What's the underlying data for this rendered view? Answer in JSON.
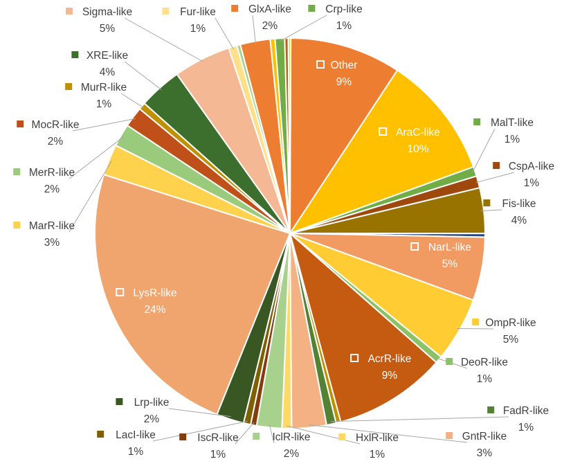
{
  "chart_data": {
    "type": "pie",
    "title": "",
    "slices": [
      {
        "label": "Other",
        "pct_label": "9%",
        "value": 9.3,
        "color": "#ED7D31",
        "label_inside": true
      },
      {
        "label": "AraC-like",
        "pct_label": "10%",
        "value": 10.3,
        "color": "#FFC000",
        "label_inside": true
      },
      {
        "label": "MalT-like",
        "pct_label": "1%",
        "value": 0.8,
        "color": "#70AD47",
        "label_inside": false
      },
      {
        "label": "CspA-like",
        "pct_label": "1%",
        "value": 1.0,
        "color": "#9E480E",
        "label_inside": false
      },
      {
        "label": "Fis-like",
        "pct_label": "4%",
        "value": 3.8,
        "color": "#997300",
        "label_inside": false
      },
      {
        "label": "",
        "pct_label": "",
        "value": 0.3,
        "color": "#264478",
        "label_inside": false
      },
      {
        "label": "NarL-like",
        "pct_label": "5%",
        "value": 5.3,
        "color": "#F19B63",
        "label_inside": true
      },
      {
        "label": "OmpR-like",
        "pct_label": "5%",
        "value": 5.4,
        "color": "#FFCD33",
        "label_inside": false
      },
      {
        "label": "DeoR-like",
        "pct_label": "1%",
        "value": 0.6,
        "color": "#8CC168",
        "label_inside": false
      },
      {
        "label": "AcrR-like",
        "pct_label": "9%",
        "value": 9.4,
        "color": "#C55A11",
        "label_inside": true
      },
      {
        "label": "",
        "pct_label": "",
        "value": 0.4,
        "color": "#BF9000",
        "label_inside": false
      },
      {
        "label": "FadR-like",
        "pct_label": "1%",
        "value": 0.8,
        "color": "#548235",
        "label_inside": false
      },
      {
        "label": "GntR-like",
        "pct_label": "3%",
        "value": 2.9,
        "color": "#F4B183",
        "label_inside": false
      },
      {
        "label": "HxlR-like",
        "pct_label": "1%",
        "value": 0.8,
        "color": "#FFD966",
        "label_inside": false
      },
      {
        "label": "IclR-like",
        "pct_label": "2%",
        "value": 2.1,
        "color": "#A9D18E",
        "label_inside": false
      },
      {
        "label": "IscR-like",
        "pct_label": "1%",
        "value": 0.5,
        "color": "#843C0C",
        "label_inside": false
      },
      {
        "label": "LacI-like",
        "pct_label": "1%",
        "value": 0.6,
        "color": "#7F6000",
        "label_inside": false
      },
      {
        "label": "Lrp-like",
        "pct_label": "2%",
        "value": 2.3,
        "color": "#385723",
        "label_inside": false
      },
      {
        "label": "LysR-like",
        "pct_label": "24%",
        "value": 24.0,
        "color": "#F0A56E",
        "label_inside": true
      },
      {
        "label": "MarR-like",
        "pct_label": "3%",
        "value": 2.6,
        "color": "#FFD24D",
        "label_inside": false
      },
      {
        "label": "MerR-like",
        "pct_label": "2%",
        "value": 1.9,
        "color": "#9ACB7C",
        "label_inside": false
      },
      {
        "label": "MocR-like",
        "pct_label": "2%",
        "value": 1.7,
        "color": "#C0501A",
        "label_inside": false
      },
      {
        "label": "MurR-like",
        "pct_label": "1%",
        "value": 0.6,
        "color": "#BF9000",
        "label_inside": false
      },
      {
        "label": "XRE-like",
        "pct_label": "4%",
        "value": 3.6,
        "color": "#3C6E2E",
        "label_inside": false
      },
      {
        "label": "Sigma-like",
        "pct_label": "5%",
        "value": 4.8,
        "color": "#F4B994",
        "label_inside": false
      },
      {
        "label": "Fur-like",
        "pct_label": "1%",
        "value": 0.7,
        "color": "#FFE08A",
        "label_inside": false
      },
      {
        "label": "",
        "pct_label": "",
        "value": 0.3,
        "color": "#A9D18E",
        "label_inside": false
      },
      {
        "label": "GlxA-like",
        "pct_label": "2%",
        "value": 2.5,
        "color": "#ED7D31",
        "label_inside": false
      },
      {
        "label": "",
        "pct_label": "",
        "value": 0.4,
        "color": "#FFC000",
        "label_inside": false
      },
      {
        "label": "Crp-like",
        "pct_label": "1%",
        "value": 0.8,
        "color": "#70AD47",
        "label_inside": false
      },
      {
        "label": "",
        "pct_label": "",
        "value": 0.3,
        "color": "#C55A11",
        "label_inside": false
      },
      {
        "label": "",
        "pct_label": "",
        "value": 0.2,
        "color": "#FFCD33",
        "label_inside": false
      }
    ]
  }
}
